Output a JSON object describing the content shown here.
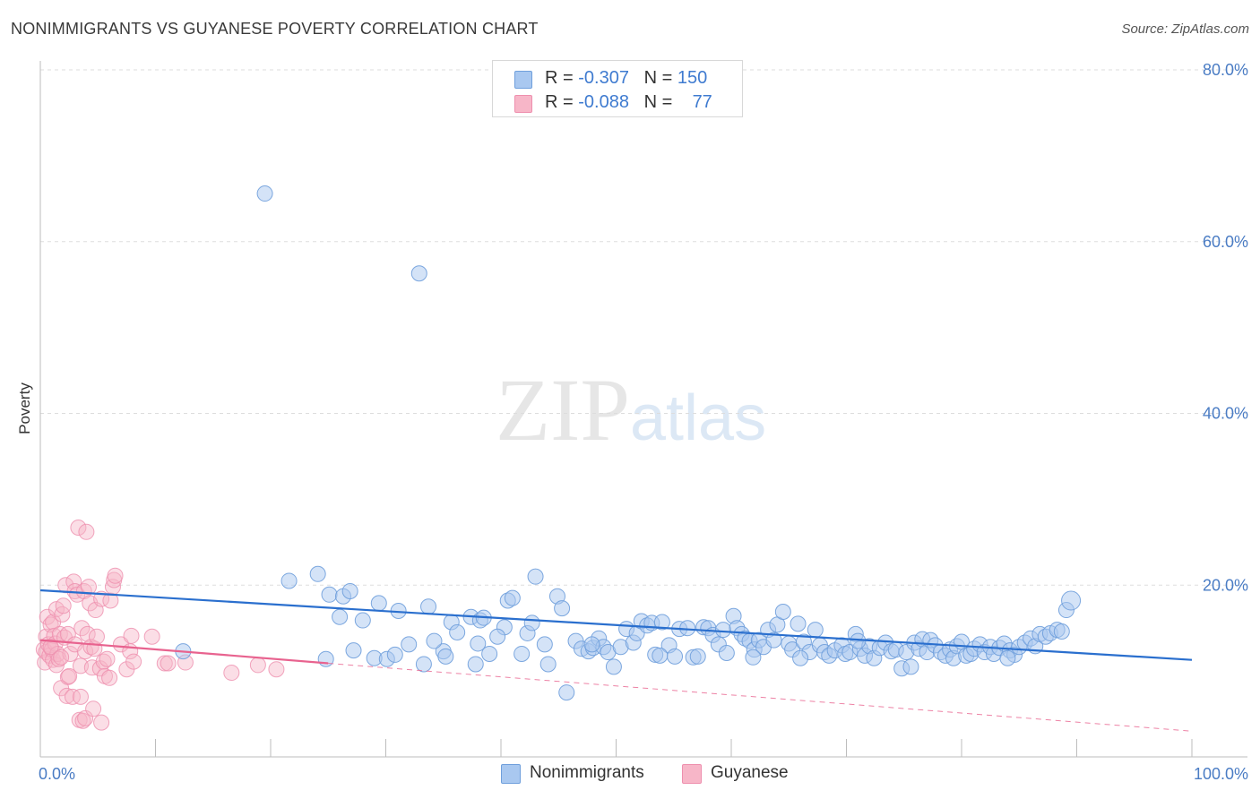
{
  "header": {
    "title": "NONIMMIGRANTS VS GUYANESE POVERTY CORRELATION CHART",
    "source": "Source: ZipAtlas.com"
  },
  "watermark": {
    "zip": "ZIP",
    "atlas": "atlas"
  },
  "legend": {
    "rows": [
      {
        "r_label": "R = ",
        "r_value": "-0.307",
        "n_label": "N = ",
        "n_value": "150",
        "color": "#a9c8f0"
      },
      {
        "r_label": "R = ",
        "r_value": "-0.088",
        "n_label": "N = ",
        "n_value": "77",
        "color": "#f7b6c8"
      }
    ]
  },
  "bottom_legend": {
    "items": [
      {
        "label": "Nonimmigrants",
        "color": "#a9c8f0"
      },
      {
        "label": "Guyanese",
        "color": "#f7b6c8"
      }
    ]
  },
  "colors": {
    "blue_fill": "#a9c8f0",
    "blue_stroke": "#6f9fdc",
    "blue_line": "#2a6fce",
    "pink_fill": "#f7b6c8",
    "pink_stroke": "#ee8fae",
    "pink_line": "#e8638f",
    "grid": "#dddddd",
    "axis_text": "#4a7cc4"
  },
  "chart_data": {
    "type": "scatter",
    "title": "NONIMMIGRANTS VS GUYANESE POVERTY CORRELATION CHART",
    "xlabel": "",
    "ylabel": "Poverty",
    "xlim": [
      0,
      100
    ],
    "ylim": [
      0,
      80
    ],
    "x_tick_labels": [
      "0.0%",
      "100.0%"
    ],
    "y_ticks": [
      20,
      40,
      60,
      80
    ],
    "y_tick_labels": [
      "20.0%",
      "40.0%",
      "60.0%",
      "80.0%"
    ],
    "grid": true,
    "series": [
      {
        "name": "Nonimmigrants",
        "r": -0.307,
        "n": 150,
        "trend": {
          "x": [
            0,
            100
          ],
          "y": [
            19.4,
            11.3
          ]
        },
        "points": [
          [
            19.5,
            65.6
          ],
          [
            32.9,
            56.3
          ],
          [
            12.4,
            12.3
          ],
          [
            21.6,
            20.5
          ],
          [
            24.1,
            21.3
          ],
          [
            25.1,
            18.9
          ],
          [
            26.0,
            16.3
          ],
          [
            26.3,
            18.7
          ],
          [
            26.9,
            19.3
          ],
          [
            27.2,
            12.4
          ],
          [
            28.0,
            15.9
          ],
          [
            29.0,
            11.5
          ],
          [
            29.4,
            17.9
          ],
          [
            30.1,
            11.4
          ],
          [
            30.8,
            11.9
          ],
          [
            31.1,
            17.0
          ],
          [
            32.0,
            13.1
          ],
          [
            33.3,
            10.8
          ],
          [
            33.7,
            17.5
          ],
          [
            35.0,
            12.3
          ],
          [
            35.2,
            11.7
          ],
          [
            35.7,
            15.7
          ],
          [
            36.2,
            14.5
          ],
          [
            37.4,
            16.3
          ],
          [
            37.8,
            10.8
          ],
          [
            38.0,
            13.2
          ],
          [
            38.2,
            15.9
          ],
          [
            38.5,
            16.2
          ],
          [
            39.0,
            12.0
          ],
          [
            40.3,
            15.1
          ],
          [
            40.6,
            18.2
          ],
          [
            41.0,
            18.5
          ],
          [
            41.8,
            12.0
          ],
          [
            42.3,
            14.4
          ],
          [
            42.7,
            15.6
          ],
          [
            43.0,
            21.0
          ],
          [
            43.8,
            13.1
          ],
          [
            44.1,
            10.8
          ],
          [
            44.9,
            18.7
          ],
          [
            45.3,
            17.3
          ],
          [
            45.7,
            7.5
          ],
          [
            46.5,
            13.5
          ],
          [
            47.0,
            12.6
          ],
          [
            47.6,
            12.3
          ],
          [
            48.0,
            12.7
          ],
          [
            48.5,
            13.8
          ],
          [
            48.9,
            12.8
          ],
          [
            49.3,
            12.2
          ],
          [
            49.8,
            10.5
          ],
          [
            50.4,
            12.8
          ],
          [
            50.9,
            14.9
          ],
          [
            51.5,
            13.3
          ],
          [
            51.8,
            14.4
          ],
          [
            52.2,
            15.8
          ],
          [
            52.7,
            15.3
          ],
          [
            53.1,
            15.6
          ],
          [
            53.4,
            11.9
          ],
          [
            54.0,
            15.7
          ],
          [
            54.6,
            13.0
          ],
          [
            55.1,
            11.7
          ],
          [
            55.5,
            14.9
          ],
          [
            56.2,
            15.0
          ],
          [
            56.7,
            11.6
          ],
          [
            57.1,
            11.7
          ],
          [
            57.6,
            15.1
          ],
          [
            58.0,
            15.0
          ],
          [
            58.4,
            14.2
          ],
          [
            58.9,
            13.1
          ],
          [
            59.3,
            14.8
          ],
          [
            59.6,
            12.1
          ],
          [
            60.2,
            16.4
          ],
          [
            60.5,
            15.0
          ],
          [
            60.9,
            14.3
          ],
          [
            61.2,
            13.8
          ],
          [
            61.6,
            13.5
          ],
          [
            62.0,
            12.5
          ],
          [
            62.4,
            13.6
          ],
          [
            62.8,
            12.8
          ],
          [
            63.2,
            14.8
          ],
          [
            63.7,
            13.6
          ],
          [
            64.0,
            15.4
          ],
          [
            64.5,
            16.9
          ],
          [
            65.0,
            13.2
          ],
          [
            65.3,
            12.5
          ],
          [
            65.8,
            15.5
          ],
          [
            66.3,
            13.4
          ],
          [
            66.8,
            12.2
          ],
          [
            67.3,
            14.8
          ],
          [
            67.7,
            13.0
          ],
          [
            68.1,
            12.2
          ],
          [
            68.5,
            11.8
          ],
          [
            69.0,
            12.4
          ],
          [
            69.6,
            13.0
          ],
          [
            69.9,
            12.0
          ],
          [
            70.3,
            12.2
          ],
          [
            70.8,
            14.3
          ],
          [
            71.2,
            12.6
          ],
          [
            71.6,
            11.8
          ],
          [
            72.0,
            12.9
          ],
          [
            72.4,
            11.5
          ],
          [
            72.9,
            12.7
          ],
          [
            73.4,
            13.3
          ],
          [
            73.9,
            12.3
          ],
          [
            74.3,
            12.5
          ],
          [
            74.8,
            10.3
          ],
          [
            75.2,
            12.2
          ],
          [
            75.6,
            10.5
          ],
          [
            75.9,
            13.3
          ],
          [
            76.3,
            12.6
          ],
          [
            76.6,
            13.7
          ],
          [
            77.0,
            12.2
          ],
          [
            77.3,
            13.6
          ],
          [
            77.7,
            13.0
          ],
          [
            78.2,
            12.2
          ],
          [
            78.6,
            11.8
          ],
          [
            79.0,
            12.5
          ],
          [
            79.3,
            11.5
          ],
          [
            79.6,
            12.9
          ],
          [
            80.0,
            13.4
          ],
          [
            80.4,
            11.8
          ],
          [
            80.8,
            12.0
          ],
          [
            81.1,
            12.6
          ],
          [
            81.6,
            13.1
          ],
          [
            82.0,
            12.2
          ],
          [
            82.5,
            12.8
          ],
          [
            82.8,
            12.0
          ],
          [
            83.3,
            12.7
          ],
          [
            83.7,
            13.2
          ],
          [
            84.2,
            12.4
          ],
          [
            84.6,
            11.9
          ],
          [
            85.0,
            12.8
          ],
          [
            85.5,
            13.3
          ],
          [
            86.0,
            13.8
          ],
          [
            86.4,
            12.9
          ],
          [
            86.8,
            14.3
          ],
          [
            87.3,
            14.0
          ],
          [
            87.7,
            14.4
          ],
          [
            88.3,
            14.8
          ],
          [
            88.7,
            14.6
          ],
          [
            89.1,
            17.1
          ],
          [
            89.5,
            18.2
          ],
          [
            24.8,
            11.4
          ],
          [
            34.2,
            13.5
          ],
          [
            39.7,
            14.0
          ],
          [
            47.9,
            13.1
          ],
          [
            53.8,
            11.8
          ],
          [
            61.9,
            11.6
          ],
          [
            66.0,
            11.5
          ],
          [
            71.0,
            13.5
          ],
          [
            84.0,
            11.5
          ]
        ]
      },
      {
        "name": "Guyanese",
        "r": -0.088,
        "n": 77,
        "trend": {
          "x": [
            0,
            25
          ],
          "y": [
            13.6,
            10.9
          ]
        },
        "trend_extension": {
          "x": [
            25,
            100
          ],
          "y": [
            10.9,
            3.0
          ]
        },
        "points": [
          [
            0.3,
            12.5
          ],
          [
            0.4,
            11.0
          ],
          [
            0.5,
            14.0
          ],
          [
            0.5,
            12.2
          ],
          [
            0.6,
            16.3
          ],
          [
            0.7,
            13.1
          ],
          [
            0.8,
            11.8
          ],
          [
            0.9,
            15.4
          ],
          [
            1.0,
            12.5
          ],
          [
            1.1,
            15.7
          ],
          [
            1.1,
            11.3
          ],
          [
            1.2,
            14.1
          ],
          [
            1.3,
            13.2
          ],
          [
            1.4,
            10.7
          ],
          [
            1.4,
            17.2
          ],
          [
            1.5,
            12.0
          ],
          [
            1.6,
            11.4
          ],
          [
            1.7,
            14.3
          ],
          [
            1.8,
            8.0
          ],
          [
            1.9,
            16.6
          ],
          [
            2.0,
            17.6
          ],
          [
            2.1,
            13.9
          ],
          [
            2.2,
            20.0
          ],
          [
            2.3,
            7.1
          ],
          [
            2.4,
            14.3
          ],
          [
            2.4,
            9.3
          ],
          [
            2.5,
            9.4
          ],
          [
            2.6,
            12.0
          ],
          [
            2.8,
            7.0
          ],
          [
            2.9,
            20.4
          ],
          [
            3.0,
            13.1
          ],
          [
            3.0,
            19.3
          ],
          [
            3.2,
            18.9
          ],
          [
            3.3,
            26.7
          ],
          [
            3.4,
            4.3
          ],
          [
            3.5,
            7.0
          ],
          [
            3.5,
            10.6
          ],
          [
            3.6,
            15.0
          ],
          [
            3.7,
            4.2
          ],
          [
            3.8,
            19.3
          ],
          [
            3.9,
            12.3
          ],
          [
            3.9,
            4.5
          ],
          [
            4.0,
            26.2
          ],
          [
            4.1,
            14.3
          ],
          [
            4.2,
            19.8
          ],
          [
            4.3,
            17.9
          ],
          [
            4.4,
            12.8
          ],
          [
            4.5,
            10.4
          ],
          [
            4.6,
            5.6
          ],
          [
            4.7,
            12.6
          ],
          [
            4.8,
            17.1
          ],
          [
            4.9,
            14.0
          ],
          [
            5.2,
            10.3
          ],
          [
            5.3,
            4.0
          ],
          [
            5.3,
            18.4
          ],
          [
            5.5,
            11.1
          ],
          [
            5.6,
            9.4
          ],
          [
            5.8,
            11.4
          ],
          [
            6.0,
            9.2
          ],
          [
            6.1,
            18.2
          ],
          [
            6.3,
            19.8
          ],
          [
            6.4,
            20.6
          ],
          [
            6.5,
            21.1
          ],
          [
            7.0,
            13.1
          ],
          [
            7.5,
            10.2
          ],
          [
            7.8,
            12.3
          ],
          [
            7.9,
            14.1
          ],
          [
            8.1,
            11.1
          ],
          [
            9.7,
            14.0
          ],
          [
            10.8,
            10.9
          ],
          [
            11.1,
            10.9
          ],
          [
            12.6,
            11.0
          ],
          [
            16.6,
            9.8
          ],
          [
            18.9,
            10.7
          ],
          [
            20.5,
            10.2
          ],
          [
            0.9,
            12.8
          ],
          [
            1.8,
            11.6
          ]
        ]
      }
    ]
  }
}
